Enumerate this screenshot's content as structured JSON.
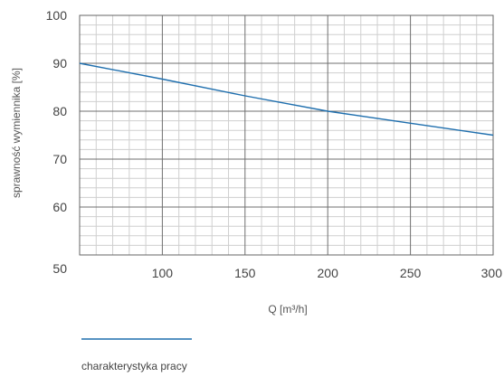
{
  "chart_data": {
    "type": "line",
    "title": "",
    "xlabel": "Q [m³/h]",
    "ylabel": "sprawność wymiennika [%]",
    "xlim": [
      50,
      300
    ],
    "ylim": [
      50,
      100
    ],
    "x_ticks": [
      100,
      150,
      200,
      250,
      300
    ],
    "y_ticks": [
      50,
      60,
      70,
      80,
      90,
      100
    ],
    "x_minor_step": 10,
    "y_minor_step": 2,
    "grid": true,
    "legend_position": "bottom-left",
    "series": [
      {
        "name": "charakterystyka pracy",
        "color": "#1f6fae",
        "x": [
          50,
          100,
          150,
          200,
          250,
          300
        ],
        "y": [
          90,
          86.7,
          83.2,
          80,
          77.5,
          75
        ]
      }
    ]
  }
}
